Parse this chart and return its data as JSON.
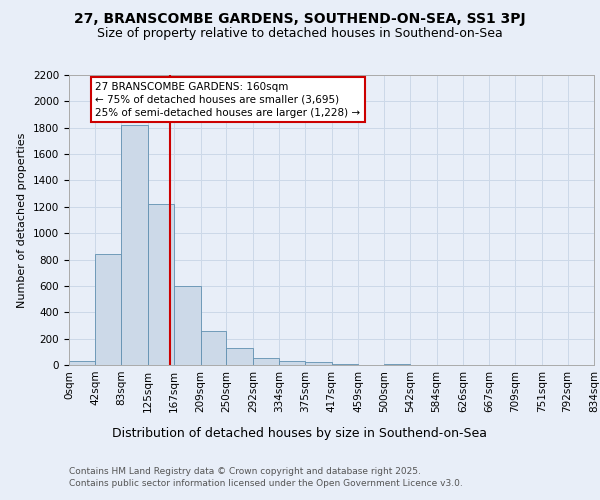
{
  "title1": "27, BRANSCOMBE GARDENS, SOUTHEND-ON-SEA, SS1 3PJ",
  "title2": "Size of property relative to detached houses in Southend-on-Sea",
  "xlabel": "Distribution of detached houses by size in Southend-on-Sea",
  "ylabel": "Number of detached properties",
  "bin_edges": [
    0,
    42,
    83,
    125,
    167,
    209,
    250,
    292,
    334,
    375,
    417,
    459,
    500,
    542,
    584,
    626,
    667,
    709,
    751,
    792,
    834
  ],
  "bar_heights": [
    30,
    840,
    1820,
    1220,
    600,
    260,
    130,
    50,
    30,
    20,
    10,
    0,
    10,
    0,
    0,
    0,
    0,
    0,
    0,
    0
  ],
  "bar_color": "#ccd9e8",
  "bar_edge_color": "#6090b0",
  "grid_color": "#ccd8e8",
  "bg_color": "#e8eef8",
  "property_size": 160,
  "vline_color": "#cc0000",
  "annotation_text": "27 BRANSCOMBE GARDENS: 160sqm\n← 75% of detached houses are smaller (3,695)\n25% of semi-detached houses are larger (1,228) →",
  "annotation_box_color": "#ffffff",
  "annotation_border_color": "#cc0000",
  "ylim": [
    0,
    2200
  ],
  "yticks": [
    0,
    200,
    400,
    600,
    800,
    1000,
    1200,
    1400,
    1600,
    1800,
    2000,
    2200
  ],
  "footnote1": "Contains HM Land Registry data © Crown copyright and database right 2025.",
  "footnote2": "Contains public sector information licensed under the Open Government Licence v3.0.",
  "title1_fontsize": 10,
  "title2_fontsize": 9,
  "xlabel_fontsize": 9,
  "ylabel_fontsize": 8,
  "tick_fontsize": 7.5,
  "annotation_fontsize": 7.5,
  "footnote_fontsize": 6.5
}
